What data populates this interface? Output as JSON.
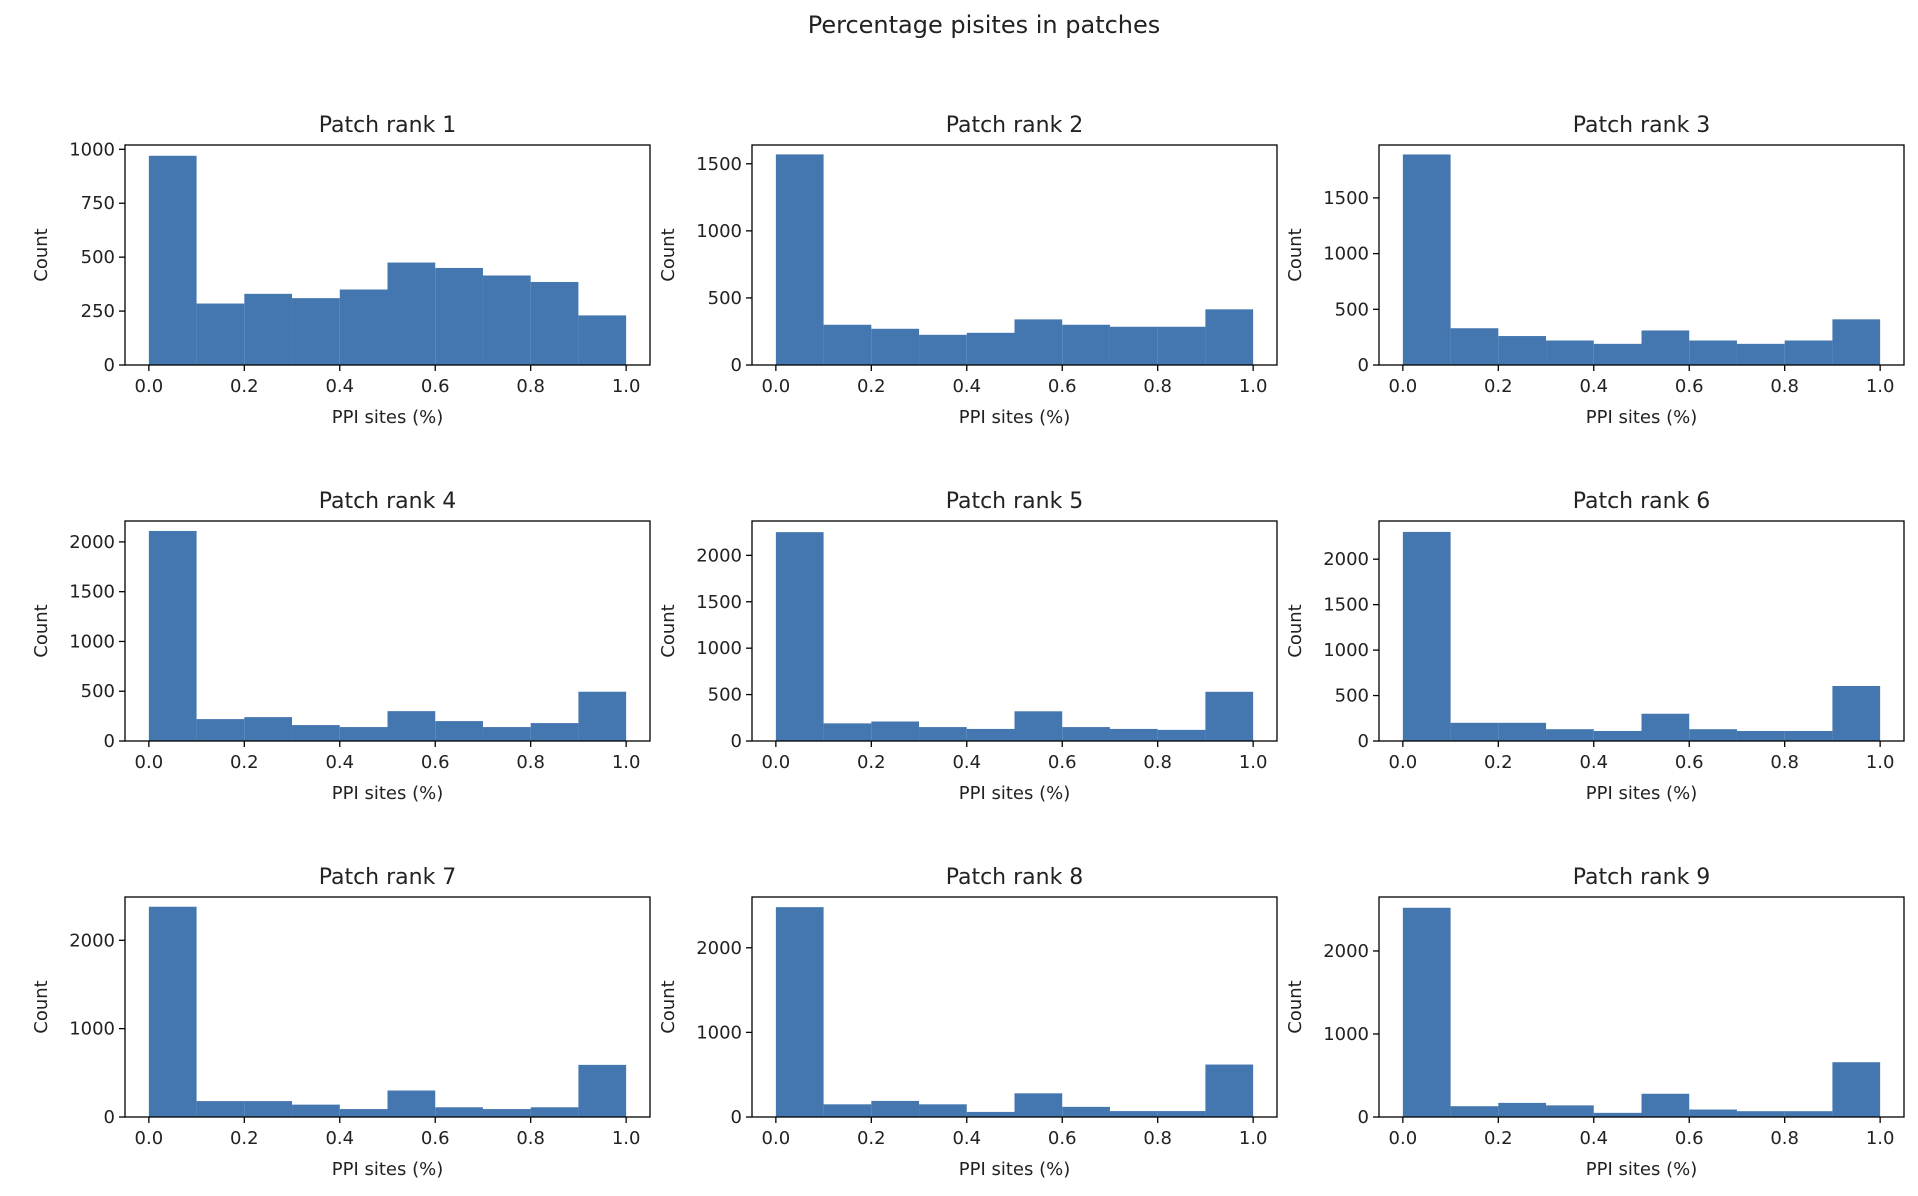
{
  "figure": {
    "suptitle": "Percentage pisites in patches",
    "bar_color": "#4477b0"
  },
  "chart_data": [
    {
      "type": "bar",
      "title": "Patch rank 1",
      "xlabel": "PPI sites (%)",
      "ylabel": "Count",
      "bin_edges": [
        0.0,
        0.1,
        0.2,
        0.3,
        0.4,
        0.5,
        0.6,
        0.7,
        0.8,
        0.9,
        1.0
      ],
      "values": [
        970,
        285,
        330,
        310,
        350,
        475,
        450,
        415,
        385,
        230
      ],
      "xticks": [
        "0.0",
        "0.2",
        "0.4",
        "0.6",
        "0.8",
        "1.0"
      ],
      "yticks": [
        0,
        250,
        500,
        750,
        1000
      ],
      "ylim": [
        0,
        1020
      ],
      "xlim": [
        -0.05,
        1.05
      ],
      "grid": false
    },
    {
      "type": "bar",
      "title": "Patch rank 2",
      "xlabel": "PPI sites (%)",
      "ylabel": "Count",
      "bin_edges": [
        0.0,
        0.1,
        0.2,
        0.3,
        0.4,
        0.5,
        0.6,
        0.7,
        0.8,
        0.9,
        1.0
      ],
      "values": [
        1570,
        300,
        270,
        225,
        240,
        340,
        300,
        285,
        285,
        415
      ],
      "xticks": [
        "0.0",
        "0.2",
        "0.4",
        "0.6",
        "0.8",
        "1.0"
      ],
      "yticks": [
        0,
        500,
        1000,
        1500
      ],
      "ylim": [
        0,
        1640
      ],
      "xlim": [
        -0.05,
        1.05
      ],
      "grid": false
    },
    {
      "type": "bar",
      "title": "Patch rank 3",
      "xlabel": "PPI sites (%)",
      "ylabel": "Count",
      "bin_edges": [
        0.0,
        0.1,
        0.2,
        0.3,
        0.4,
        0.5,
        0.6,
        0.7,
        0.8,
        0.9,
        1.0
      ],
      "values": [
        1890,
        330,
        260,
        220,
        190,
        310,
        220,
        190,
        220,
        410
      ],
      "xticks": [
        "0.0",
        "0.2",
        "0.4",
        "0.6",
        "0.8",
        "1.0"
      ],
      "yticks": [
        0,
        500,
        1000,
        1500
      ],
      "ylim": [
        0,
        1975
      ],
      "xlim": [
        -0.05,
        1.05
      ],
      "grid": false
    },
    {
      "type": "bar",
      "title": "Patch rank 4",
      "xlabel": "PPI sites (%)",
      "ylabel": "Count",
      "bin_edges": [
        0.0,
        0.1,
        0.2,
        0.3,
        0.4,
        0.5,
        0.6,
        0.7,
        0.8,
        0.9,
        1.0
      ],
      "values": [
        2110,
        220,
        240,
        160,
        140,
        300,
        200,
        140,
        180,
        495
      ],
      "xticks": [
        "0.0",
        "0.2",
        "0.4",
        "0.6",
        "0.8",
        "1.0"
      ],
      "yticks": [
        0,
        500,
        1000,
        1500,
        2000
      ],
      "ylim": [
        0,
        2210
      ],
      "xlim": [
        -0.05,
        1.05
      ],
      "grid": false
    },
    {
      "type": "bar",
      "title": "Patch rank 5",
      "xlabel": "PPI sites (%)",
      "ylabel": "Count",
      "bin_edges": [
        0.0,
        0.1,
        0.2,
        0.3,
        0.4,
        0.5,
        0.6,
        0.7,
        0.8,
        0.9,
        1.0
      ],
      "values": [
        2250,
        190,
        210,
        150,
        130,
        320,
        150,
        130,
        120,
        530
      ],
      "xticks": [
        "0.0",
        "0.2",
        "0.4",
        "0.6",
        "0.8",
        "1.0"
      ],
      "yticks": [
        0,
        500,
        1000,
        1500,
        2000
      ],
      "ylim": [
        0,
        2370
      ],
      "xlim": [
        -0.05,
        1.05
      ],
      "grid": false
    },
    {
      "type": "bar",
      "title": "Patch rank 6",
      "xlabel": "PPI sites (%)",
      "ylabel": "Count",
      "bin_edges": [
        0.0,
        0.1,
        0.2,
        0.3,
        0.4,
        0.5,
        0.6,
        0.7,
        0.8,
        0.9,
        1.0
      ],
      "values": [
        2300,
        200,
        200,
        130,
        110,
        300,
        130,
        110,
        110,
        605
      ],
      "xticks": [
        "0.0",
        "0.2",
        "0.4",
        "0.6",
        "0.8",
        "1.0"
      ],
      "yticks": [
        0,
        500,
        1000,
        1500,
        2000
      ],
      "ylim": [
        0,
        2420
      ],
      "xlim": [
        -0.05,
        1.05
      ],
      "grid": false
    },
    {
      "type": "bar",
      "title": "Patch rank 7",
      "xlabel": "PPI sites (%)",
      "ylabel": "Count",
      "bin_edges": [
        0.0,
        0.1,
        0.2,
        0.3,
        0.4,
        0.5,
        0.6,
        0.7,
        0.8,
        0.9,
        1.0
      ],
      "values": [
        2380,
        180,
        180,
        140,
        90,
        300,
        110,
        90,
        110,
        590
      ],
      "xticks": [
        "0.0",
        "0.2",
        "0.4",
        "0.6",
        "0.8",
        "1.0"
      ],
      "yticks": [
        0,
        1000,
        2000
      ],
      "ylim": [
        0,
        2490
      ],
      "xlim": [
        -0.05,
        1.05
      ],
      "grid": false
    },
    {
      "type": "bar",
      "title": "Patch rank 8",
      "xlabel": "PPI sites (%)",
      "ylabel": "Count",
      "bin_edges": [
        0.0,
        0.1,
        0.2,
        0.3,
        0.4,
        0.5,
        0.6,
        0.7,
        0.8,
        0.9,
        1.0
      ],
      "values": [
        2480,
        150,
        190,
        150,
        60,
        280,
        120,
        70,
        70,
        620
      ],
      "xticks": [
        "0.0",
        "0.2",
        "0.4",
        "0.6",
        "0.8",
        "1.0"
      ],
      "yticks": [
        0,
        1000,
        2000
      ],
      "ylim": [
        0,
        2600
      ],
      "xlim": [
        -0.05,
        1.05
      ],
      "grid": false
    },
    {
      "type": "bar",
      "title": "Patch rank 9",
      "xlabel": "PPI sites (%)",
      "ylabel": "Count",
      "bin_edges": [
        0.0,
        0.1,
        0.2,
        0.3,
        0.4,
        0.5,
        0.6,
        0.7,
        0.8,
        0.9,
        1.0
      ],
      "values": [
        2520,
        130,
        170,
        140,
        50,
        280,
        90,
        70,
        70,
        660
      ],
      "xticks": [
        "0.0",
        "0.2",
        "0.4",
        "0.6",
        "0.8",
        "1.0"
      ],
      "yticks": [
        0,
        1000,
        2000
      ],
      "ylim": [
        0,
        2650
      ],
      "xlim": [
        -0.05,
        1.05
      ],
      "grid": false
    }
  ]
}
